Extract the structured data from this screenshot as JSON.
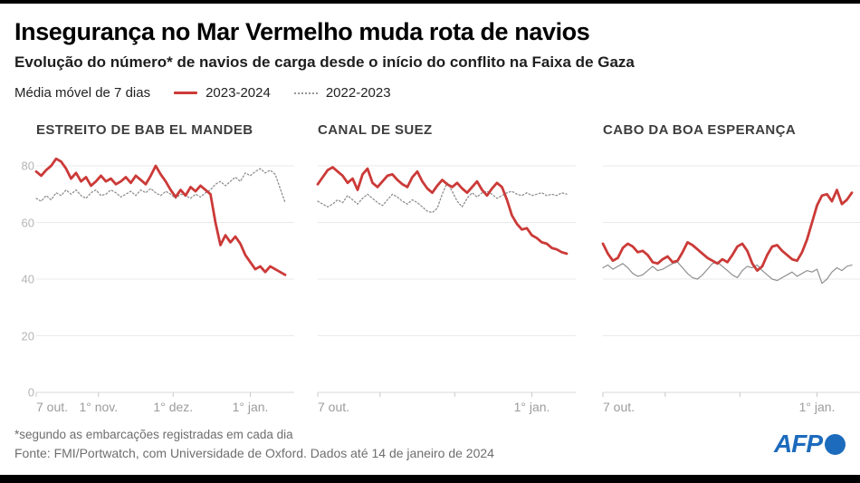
{
  "header": {
    "title": "Insegurança no Mar Vermelho muda rota de navios",
    "subtitle": "Evolução do número* de navios de carga desde o início do conflito na Faixa de Gaza"
  },
  "legend": {
    "label": "Média móvel de 7 dias",
    "series": [
      {
        "name": "2023-2024",
        "color": "#cb3a38",
        "style": "solid"
      },
      {
        "name": "2022-2023",
        "color": "#999999",
        "style": "dotted"
      }
    ]
  },
  "colors": {
    "line_red": "#cb3a38",
    "line_gray": "#8f8f8f",
    "grid": "#e9e9e9",
    "axis": "#d8d8d8",
    "tick": "#c9c9c9",
    "tick_label": "#9c9c9c",
    "afp_blue": "#1d6bbd"
  },
  "chart_data": [
    {
      "type": "line",
      "title": "ESTREITO DE BAB EL MANDEB",
      "ylim": [
        0,
        88
      ],
      "yticks": [
        0,
        20,
        40,
        60,
        80
      ],
      "grid": true,
      "x_unit": "days since 7 Oct 2023",
      "x_range": [
        0,
        100
      ],
      "xticks": [
        {
          "day": 0,
          "label": "7 out."
        },
        {
          "day": 25,
          "label": "1° nov."
        },
        {
          "day": 55,
          "label": "1° dez."
        },
        {
          "day": 86,
          "label": "1° jan."
        }
      ],
      "series": [
        {
          "name": "2023-2024",
          "color": "#cb3a38",
          "dash": null,
          "width": 2.8,
          "x_step": 2,
          "values": [
            78,
            76.5,
            78.5,
            80,
            82.5,
            81.5,
            79,
            75.5,
            77.5,
            74.5,
            76,
            73,
            74.5,
            76.5,
            74.5,
            75.5,
            73.5,
            74.5,
            76,
            74,
            76.5,
            75,
            73.5,
            76.5,
            80,
            77,
            74.5,
            71.5,
            69,
            71.5,
            69.5,
            72.5,
            71,
            73,
            71.5,
            70,
            60,
            52,
            55.5,
            53,
            55,
            52.5,
            48.5,
            46,
            43.5,
            44.5,
            42.5,
            44.5,
            43.5,
            42.5,
            41.5
          ]
        },
        {
          "name": "2022-2023",
          "color": "#8f8f8f",
          "dash": "1.6 2.4",
          "width": 1.3,
          "x_step": 2,
          "values": [
            68.5,
            67.5,
            69.5,
            68,
            70.5,
            69.5,
            71.5,
            70,
            71.5,
            69.5,
            68.5,
            70.5,
            71.5,
            69.5,
            70,
            71.5,
            70.5,
            69,
            70,
            71,
            69.5,
            71.5,
            70.5,
            72,
            70.5,
            69.5,
            71,
            70,
            68.5,
            70,
            69.5,
            68.5,
            70,
            69,
            70.5,
            71.5,
            73.5,
            74.5,
            73,
            74.5,
            76,
            74.5,
            77.5,
            76.5,
            78,
            79,
            77.5,
            78.5,
            77,
            72,
            67
          ]
        }
      ]
    },
    {
      "type": "line",
      "title": "CANAL DE SUEZ",
      "ylim": [
        0,
        88
      ],
      "yticks": [
        0,
        20,
        40,
        60,
        80
      ],
      "grid": true,
      "x_unit": "days since 7 Oct 2023",
      "x_range": [
        0,
        100
      ],
      "xticks": [
        {
          "day": 0,
          "label": "7 out."
        },
        {
          "day": 25,
          "label": ""
        },
        {
          "day": 55,
          "label": ""
        },
        {
          "day": 86,
          "label": "1° jan."
        }
      ],
      "series": [
        {
          "name": "2023-2024",
          "color": "#cb3a38",
          "dash": null,
          "width": 2.8,
          "x_step": 2,
          "values": [
            73.5,
            76,
            78.5,
            79.5,
            78,
            76.5,
            74,
            75.5,
            71.5,
            77,
            79,
            74,
            72.5,
            74.5,
            76.5,
            77,
            75,
            73.5,
            72.5,
            76,
            78,
            74.5,
            72,
            70.5,
            73,
            75,
            73.5,
            72.5,
            74,
            72,
            70.5,
            72.5,
            74.5,
            71.5,
            69.5,
            72,
            74,
            72.5,
            68,
            62.5,
            59.5,
            57.5,
            58,
            55.5,
            54.5,
            53,
            52.5,
            51,
            50.5,
            49.5,
            49
          ]
        },
        {
          "name": "2022-2023",
          "color": "#8f8f8f",
          "dash": "1.6 2.4",
          "width": 1.3,
          "x_step": 2,
          "values": [
            67.5,
            66.5,
            65.5,
            66.5,
            68,
            67,
            69.5,
            68,
            66.5,
            68.5,
            70,
            68.5,
            67,
            66,
            68,
            70,
            69,
            67.5,
            66.5,
            68,
            67,
            65.5,
            64,
            63.5,
            65,
            70,
            74,
            71,
            67.5,
            65.5,
            68.5,
            70.5,
            69,
            70.5,
            71,
            70,
            68.5,
            69.5,
            70.5,
            71,
            70,
            69.5,
            70.5,
            69.5,
            70,
            70.5,
            69.5,
            70,
            69.5,
            70.5,
            70
          ]
        }
      ]
    },
    {
      "type": "line",
      "title": "CABO DA BOA ESPERANÇA",
      "ylim": [
        0,
        88
      ],
      "yticks": [
        0,
        20,
        40,
        60,
        80
      ],
      "grid": true,
      "x_unit": "days since 7 Oct 2023",
      "x_range": [
        0,
        100
      ],
      "xticks": [
        {
          "day": 0,
          "label": "7 out."
        },
        {
          "day": 25,
          "label": ""
        },
        {
          "day": 55,
          "label": ""
        },
        {
          "day": 86,
          "label": "1° jan."
        }
      ],
      "series": [
        {
          "name": "2023-2024",
          "color": "#cb3a38",
          "dash": null,
          "width": 2.8,
          "x_step": 2,
          "values": [
            52.5,
            49,
            46.5,
            47.5,
            51,
            52.5,
            51.5,
            49.5,
            50,
            48.5,
            46,
            45.5,
            47,
            48,
            46,
            46.5,
            49.5,
            53,
            52,
            50.5,
            49,
            47.5,
            46.5,
            45.5,
            47,
            46,
            48.5,
            51.5,
            52.5,
            50,
            45.5,
            43,
            44.5,
            48.5,
            51.5,
            52,
            50,
            48.5,
            47,
            46.5,
            49.5,
            54,
            60,
            66,
            69.5,
            70,
            67.5,
            71.5,
            66.5,
            68,
            70.5
          ]
        },
        {
          "name": "2022-2023",
          "color": "#8f8f8f",
          "dash": null,
          "width": 1.2,
          "x_step": 2,
          "values": [
            44,
            45,
            43.5,
            44.5,
            45.5,
            44,
            42,
            41,
            41.5,
            43,
            44.5,
            43,
            43.5,
            44.5,
            45.5,
            46,
            44,
            42,
            40.5,
            40,
            41.5,
            43.5,
            45.5,
            46,
            44.5,
            43,
            41.5,
            40.5,
            43,
            44.5,
            44,
            45,
            43,
            41.5,
            40,
            39.5,
            40.5,
            41.5,
            42.5,
            41,
            42,
            43,
            42.5,
            43.5,
            38.5,
            40,
            42.5,
            44,
            43,
            44.5,
            45
          ]
        }
      ]
    }
  ],
  "footer": {
    "footnote": "*segundo as embarcações registradas em cada dia",
    "source": "Fonte: FMI/Portwatch, com Universidade de Oxford. Dados até 14 de janeiro de 2024",
    "logo_text": "AFP"
  }
}
